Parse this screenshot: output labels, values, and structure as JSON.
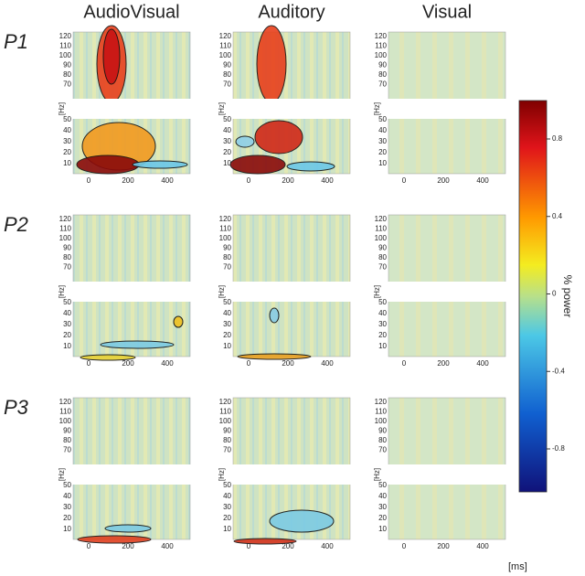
{
  "columns": [
    "AudioVisual",
    "Auditory",
    "Visual"
  ],
  "rows": [
    "P1",
    "P2",
    "P3"
  ],
  "y_axis": {
    "label": "[Hz]",
    "upper_ticks": [
      "120",
      "110",
      "100",
      "90",
      "80",
      "70"
    ],
    "lower_ticks": [
      "50",
      "40",
      "30",
      "20",
      "10"
    ]
  },
  "x_axis": {
    "label": "[ms]",
    "ticks": [
      "0",
      "200",
      "400"
    ]
  },
  "colorbar": {
    "label": "% power",
    "ticks": [
      "0.8",
      "0.4",
      "0",
      "-0.4",
      "-0.8"
    ]
  }
}
